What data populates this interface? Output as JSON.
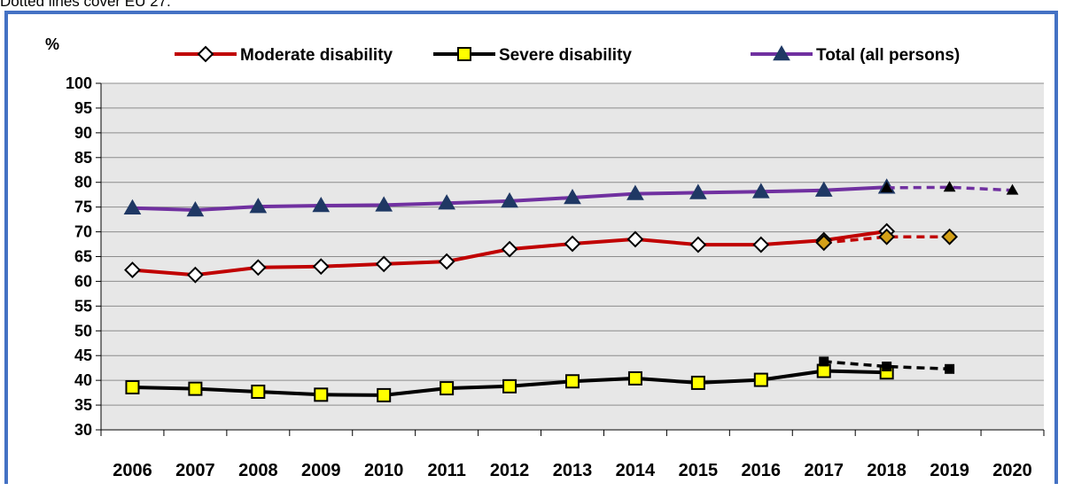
{
  "caption": "Dotted lines cover EU 27.",
  "chart_data": {
    "type": "line",
    "ylabel": "%",
    "ylim": [
      30,
      100
    ],
    "yticks": [
      30,
      35,
      40,
      45,
      50,
      55,
      60,
      65,
      70,
      75,
      80,
      85,
      90,
      95,
      100
    ],
    "categories": [
      "2006",
      "2007",
      "2008",
      "2009",
      "2010",
      "2011",
      "2012",
      "2013",
      "2014",
      "2015",
      "2016",
      "2017",
      "2018",
      "2019",
      "2020"
    ],
    "grid": true,
    "legend_position": "top",
    "series": [
      {
        "name": "Moderate disability",
        "color": "#c00000",
        "marker": "diamond",
        "marker_fill": "#ffffff",
        "style": "solid",
        "points": [
          [
            0,
            62.3
          ],
          [
            1,
            61.3
          ],
          [
            2,
            62.8
          ],
          [
            3,
            63.0
          ],
          [
            4,
            63.5
          ],
          [
            5,
            64.0
          ],
          [
            6,
            66.5
          ],
          [
            7,
            67.6
          ],
          [
            8,
            68.5
          ],
          [
            9,
            67.4
          ],
          [
            10,
            67.4
          ],
          [
            11,
            68.3
          ],
          [
            12,
            70.1
          ]
        ]
      },
      {
        "name": "Severe disability",
        "color": "#000000",
        "marker": "square",
        "marker_fill": "#ffff00",
        "style": "solid",
        "points": [
          [
            0,
            38.6
          ],
          [
            1,
            38.3
          ],
          [
            2,
            37.7
          ],
          [
            3,
            37.1
          ],
          [
            4,
            37.0
          ],
          [
            5,
            38.4
          ],
          [
            6,
            38.8
          ],
          [
            7,
            39.8
          ],
          [
            8,
            40.4
          ],
          [
            9,
            39.5
          ],
          [
            10,
            40.1
          ],
          [
            11,
            41.9
          ],
          [
            12,
            41.6
          ]
        ]
      },
      {
        "name": "Total (all persons)",
        "color": "#7030a0",
        "marker": "triangle",
        "marker_fill": "#1f3864",
        "style": "solid",
        "points": [
          [
            0,
            74.8
          ],
          [
            1,
            74.4
          ],
          [
            2,
            75.1
          ],
          [
            3,
            75.3
          ],
          [
            4,
            75.4
          ],
          [
            5,
            75.8
          ],
          [
            6,
            76.2
          ],
          [
            7,
            76.9
          ],
          [
            8,
            77.7
          ],
          [
            9,
            77.9
          ],
          [
            10,
            78.1
          ],
          [
            11,
            78.4
          ],
          [
            12,
            79.0
          ]
        ]
      },
      {
        "name": "",
        "color": "#c00000",
        "marker": "diamond",
        "marker_fill": "#d4a017",
        "style": "dashed",
        "points": [
          [
            11,
            67.8
          ],
          [
            12,
            69.0
          ],
          [
            13,
            69.0
          ]
        ]
      },
      {
        "name": "",
        "color": "#000000",
        "marker": "square-small",
        "marker_fill": "#000000",
        "style": "dashed",
        "points": [
          [
            11,
            43.8
          ],
          [
            12,
            42.8
          ],
          [
            13,
            42.3
          ]
        ]
      },
      {
        "name": "",
        "color": "#7030a0",
        "marker": "triangle-small",
        "marker_fill": "#000000",
        "style": "dashed",
        "points": [
          [
            12,
            78.9
          ],
          [
            13,
            79.0
          ],
          [
            14,
            78.4
          ]
        ]
      }
    ]
  }
}
